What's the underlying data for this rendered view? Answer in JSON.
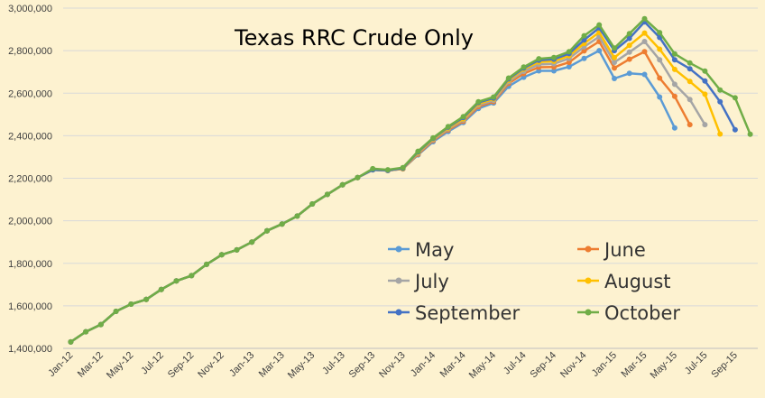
{
  "chart_data": {
    "type": "line",
    "title": "Texas RRC Crude Only",
    "xlabel": "",
    "ylabel": "",
    "ylim": [
      1400000,
      3000000
    ],
    "grid": "horizontal",
    "legend_position": "lower-right",
    "categories": [
      "Jan-12",
      "Feb-12",
      "Mar-12",
      "Apr-12",
      "May-12",
      "Jun-12",
      "Jul-12",
      "Aug-12",
      "Sep-12",
      "Oct-12",
      "Nov-12",
      "Dec-12",
      "Jan-13",
      "Feb-13",
      "Mar-13",
      "Apr-13",
      "May-13",
      "Jun-13",
      "Jul-13",
      "Aug-13",
      "Sep-13",
      "Oct-13",
      "Nov-13",
      "Dec-13",
      "Jan-14",
      "Feb-14",
      "Mar-14",
      "Apr-14",
      "May-14",
      "Jun-14",
      "Jul-14",
      "Aug-14",
      "Sep-14",
      "Oct-14",
      "Nov-14",
      "Dec-14",
      "Jan-15",
      "Feb-15",
      "Mar-15",
      "Apr-15",
      "May-15",
      "Jun-15",
      "Jul-15",
      "Aug-15",
      "Sep-15",
      "Oct-15"
    ],
    "x_tick_labels": [
      "Jan-12",
      "Mar-12",
      "May-12",
      "Jul-12",
      "Sep-12",
      "Nov-12",
      "Jan-13",
      "Mar-13",
      "May-13",
      "Jul-13",
      "Sep-13",
      "Nov-13",
      "Jan-14",
      "Mar-14",
      "May-14",
      "Jul-14",
      "Sep-14",
      "Nov-14",
      "Jan-15",
      "Mar-15",
      "May-15",
      "Jul-15",
      "Sep-15"
    ],
    "y_tick_values": [
      1400000,
      1600000,
      1800000,
      2000000,
      2200000,
      2400000,
      2600000,
      2800000,
      3000000
    ],
    "y_tick_labels": [
      "1,400,000",
      "1,600,000",
      "1,800,000",
      "2,000,000",
      "2,200,000",
      "2,400,000",
      "2,600,000",
      "2,800,000",
      "3,000,000"
    ],
    "series": [
      {
        "name": "May",
        "color": "#5b9bd5",
        "values": [
          1430000,
          1478000,
          1512000,
          1574000,
          1608000,
          1630000,
          1677000,
          1717000,
          1742000,
          1795000,
          1840000,
          1863000,
          1900000,
          1953000,
          1985000,
          2022000,
          2079000,
          2124000,
          2169000,
          2203000,
          2240000,
          2236000,
          2244000,
          2310000,
          2372000,
          2420000,
          2462000,
          2528000,
          2554000,
          2632000,
          2675000,
          2705000,
          2705000,
          2724000,
          2763000,
          2800000,
          2669000,
          2693000,
          2688000,
          2582000,
          2437000,
          null,
          null,
          null,
          null,
          null
        ]
      },
      {
        "name": "June",
        "color": "#ed7d31",
        "values": [
          1430000,
          1478000,
          1512000,
          1574000,
          1608000,
          1630000,
          1677000,
          1717000,
          1742000,
          1795000,
          1840000,
          1863000,
          1900000,
          1953000,
          1985000,
          2022000,
          2079000,
          2124000,
          2169000,
          2203000,
          2240000,
          2236000,
          2244000,
          2313000,
          2378000,
          2427000,
          2468000,
          2537000,
          2560000,
          2646000,
          2692000,
          2722000,
          2723000,
          2745000,
          2799000,
          2843000,
          2718000,
          2760000,
          2795000,
          2671000,
          2585000,
          2452000,
          null,
          null,
          null,
          null
        ]
      },
      {
        "name": "July",
        "color": "#a5a5a5",
        "values": [
          1430000,
          1478000,
          1512000,
          1574000,
          1608000,
          1630000,
          1677000,
          1717000,
          1742000,
          1795000,
          1840000,
          1863000,
          1900000,
          1953000,
          1985000,
          2022000,
          2079000,
          2124000,
          2169000,
          2203000,
          2240000,
          2236000,
          2245000,
          2318000,
          2382000,
          2432000,
          2474000,
          2544000,
          2566000,
          2654000,
          2703000,
          2735000,
          2738000,
          2763000,
          2818000,
          2866000,
          2745000,
          2793000,
          2843000,
          2757000,
          2642000,
          2570000,
          2452000,
          null,
          null,
          null
        ]
      },
      {
        "name": "August",
        "color": "#ffc000",
        "values": [
          1430000,
          1478000,
          1512000,
          1574000,
          1608000,
          1630000,
          1677000,
          1717000,
          1742000,
          1795000,
          1840000,
          1863000,
          1900000,
          1953000,
          1985000,
          2022000,
          2079000,
          2124000,
          2169000,
          2203000,
          2240000,
          2237000,
          2246000,
          2321000,
          2385000,
          2436000,
          2479000,
          2550000,
          2572000,
          2661000,
          2713000,
          2746000,
          2750000,
          2776000,
          2834000,
          2886000,
          2767000,
          2825000,
          2883000,
          2807000,
          2712000,
          2655000,
          2595000,
          2408000,
          null,
          null
        ]
      },
      {
        "name": "September",
        "color": "#4472c4",
        "values": [
          1430000,
          1478000,
          1512000,
          1574000,
          1608000,
          1630000,
          1677000,
          1717000,
          1742000,
          1795000,
          1840000,
          1863000,
          1900000,
          1953000,
          1985000,
          2022000,
          2079000,
          2124000,
          2169000,
          2203000,
          2240000,
          2237000,
          2247000,
          2324000,
          2388000,
          2440000,
          2485000,
          2556000,
          2577000,
          2667000,
          2718000,
          2755000,
          2760000,
          2786000,
          2850000,
          2907000,
          2800000,
          2858000,
          2935000,
          2862000,
          2757000,
          2715000,
          2657000,
          2560000,
          2428000,
          null
        ]
      },
      {
        "name": "October",
        "color": "#70ad47",
        "values": [
          1430000,
          1478000,
          1512000,
          1574000,
          1608000,
          1630000,
          1677000,
          1717000,
          1742000,
          1795000,
          1840000,
          1863000,
          1900000,
          1953000,
          1985000,
          2022000,
          2079000,
          2124000,
          2169000,
          2203000,
          2245000,
          2240000,
          2250000,
          2327000,
          2390000,
          2443000,
          2490000,
          2560000,
          2582000,
          2671000,
          2723000,
          2762000,
          2768000,
          2795000,
          2870000,
          2921000,
          2812000,
          2880000,
          2950000,
          2885000,
          2785000,
          2742000,
          2704000,
          2615000,
          2578000,
          2407000
        ]
      }
    ]
  }
}
